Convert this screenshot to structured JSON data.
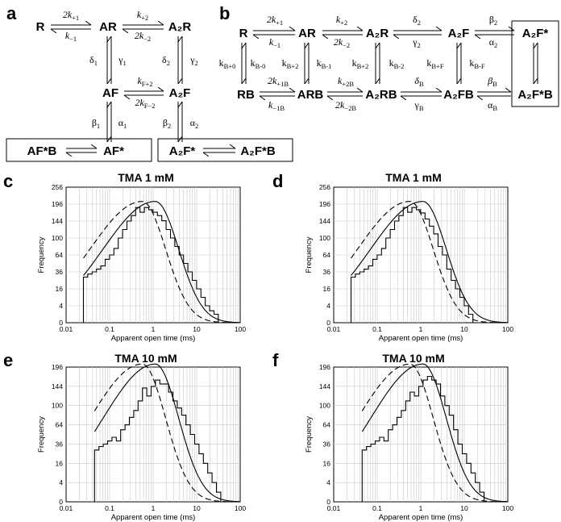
{
  "figure_labels": {
    "a": "a",
    "b": "b",
    "c": "c",
    "d": "d",
    "e": "e",
    "f": "f"
  },
  "scheme_a": {
    "states": [
      {
        "id": "R",
        "label": "R"
      },
      {
        "id": "AR",
        "label": "AR"
      },
      {
        "id": "A2R",
        "label": "A₂R"
      },
      {
        "id": "AF",
        "label": "AF"
      },
      {
        "id": "A2F",
        "label": "A₂F"
      },
      {
        "id": "AFsB",
        "label": "AF*B"
      },
      {
        "id": "AFs",
        "label": "AF*"
      },
      {
        "id": "A2Fs",
        "label": "A₂F*"
      },
      {
        "id": "A2FsB",
        "label": "A₂F*B"
      }
    ],
    "rates": [
      {
        "id": "k_p1_a",
        "main": "2k",
        "sub": "+1",
        "italic": true
      },
      {
        "id": "k_m1_a",
        "main": "k",
        "sub": "−1",
        "italic": true
      },
      {
        "id": "k_p2_a",
        "main": "k",
        "sub": "+2",
        "italic": true
      },
      {
        "id": "k_m2_a",
        "main": "2k",
        "sub": "−2",
        "italic": true
      },
      {
        "id": "d1_a",
        "main": "δ",
        "sub": "1",
        "italic": false
      },
      {
        "id": "g1_a",
        "main": "γ",
        "sub": "1",
        "italic": false
      },
      {
        "id": "d2_a",
        "main": "δ",
        "sub": "2",
        "italic": false
      },
      {
        "id": "g2_a",
        "main": "γ",
        "sub": "2",
        "italic": false
      },
      {
        "id": "kF2p_a",
        "main": "k",
        "sub": "F+2",
        "italic": true
      },
      {
        "id": "kF2m_a",
        "main": "2k",
        "sub": "F−2",
        "italic": true
      },
      {
        "id": "b1_a",
        "main": "β",
        "sub": "1",
        "italic": false
      },
      {
        "id": "a1_a",
        "main": "α",
        "sub": "1",
        "italic": false
      },
      {
        "id": "b2_a",
        "main": "β",
        "sub": "2",
        "italic": false
      },
      {
        "id": "a2_a",
        "main": "α",
        "sub": "2",
        "italic": false
      }
    ]
  },
  "scheme_b": {
    "states": [
      {
        "id": "R",
        "label": "R"
      },
      {
        "id": "AR",
        "label": "AR"
      },
      {
        "id": "A2R",
        "label": "A₂R"
      },
      {
        "id": "A2F",
        "label": "A₂F"
      },
      {
        "id": "A2Fs",
        "label": "A₂F*"
      },
      {
        "id": "RB",
        "label": "RB"
      },
      {
        "id": "ARB",
        "label": "ARB"
      },
      {
        "id": "A2RB",
        "label": "A₂RB"
      },
      {
        "id": "A2FB",
        "label": "A₂FB"
      },
      {
        "id": "A2FsB",
        "label": "A₂F*B"
      }
    ],
    "rates": [
      {
        "id": "k_p1_b",
        "main": "2k",
        "sub": "+1",
        "italic": true
      },
      {
        "id": "k_p2_b",
        "main": "k",
        "sub": "+2",
        "italic": true
      },
      {
        "id": "d2_b",
        "main": "δ",
        "sub": "2",
        "italic": false
      },
      {
        "id": "b2_b",
        "main": "β",
        "sub": "2",
        "italic": false
      },
      {
        "id": "k_m1_b",
        "main": "k",
        "sub": "−1",
        "italic": true
      },
      {
        "id": "k_m2_b",
        "main": "2k",
        "sub": "−2",
        "italic": true
      },
      {
        "id": "g2_b",
        "main": "γ",
        "sub": "2",
        "italic": false
      },
      {
        "id": "a2_b",
        "main": "α",
        "sub": "2",
        "italic": false
      },
      {
        "id": "kB0p",
        "main": "k",
        "sub": "B+0",
        "italic": false
      },
      {
        "id": "kB0m",
        "main": "k",
        "sub": "B-0",
        "italic": false
      },
      {
        "id": "kB1p",
        "main": "k",
        "sub": "B+2",
        "italic": false
      },
      {
        "id": "kB1m",
        "main": "k",
        "sub": "B-1",
        "italic": false
      },
      {
        "id": "kB2p",
        "main": "k",
        "sub": "B+2",
        "italic": false
      },
      {
        "id": "kB2m",
        "main": "k",
        "sub": "B-2",
        "italic": false
      },
      {
        "id": "kBFp",
        "main": "k",
        "sub": "B+F",
        "italic": false
      },
      {
        "id": "kBFm",
        "main": "k",
        "sub": "B-F",
        "italic": false
      },
      {
        "id": "k_p1B",
        "main": "2k",
        "sub": "+1B",
        "italic": true
      },
      {
        "id": "k_p2B",
        "main": "k",
        "sub": "+2B",
        "italic": true
      },
      {
        "id": "dB",
        "main": "δ",
        "sub": "B",
        "italic": true
      },
      {
        "id": "bB",
        "main": "β",
        "sub": "B",
        "italic": true
      },
      {
        "id": "k_m1B",
        "main": "k",
        "sub": "−1B",
        "italic": true
      },
      {
        "id": "k_m2B",
        "main": "2k",
        "sub": "−2B",
        "italic": true
      },
      {
        "id": "gB",
        "main": "γ",
        "sub": "B",
        "italic": false
      },
      {
        "id": "aB",
        "main": "α",
        "sub": "B",
        "italic": false
      }
    ]
  },
  "histograms": {
    "x_axis_label": "Apparent  open  time  (ms)",
    "y_axis_label": "Frequency",
    "x_tick_labels": [
      "0.01",
      "0.1",
      "1",
      "10",
      "100"
    ],
    "panels": [
      {
        "id": "c",
        "title": "TMA 1 mM",
        "y_ticks": [
          0,
          4,
          16,
          36,
          64,
          100,
          144,
          196,
          256
        ],
        "bin_min": 0.025,
        "counts": [
          29,
          33,
          36,
          40,
          45,
          56,
          64,
          77,
          100,
          121,
          144,
          160,
          185,
          170,
          185,
          178,
          170,
          160,
          145,
          121,
          100,
          81,
          64,
          49,
          36,
          25,
          16,
          9,
          4,
          2,
          1,
          0
        ]
      },
      {
        "id": "d",
        "title": "TMA 1 mM",
        "y_ticks": [
          0,
          4,
          16,
          36,
          64,
          100,
          144,
          196,
          256
        ],
        "bin_min": 0.025,
        "counts": [
          29,
          33,
          36,
          40,
          45,
          56,
          64,
          77,
          100,
          121,
          144,
          160,
          185,
          170,
          185,
          178,
          168,
          150,
          130,
          110,
          81,
          64,
          40,
          25,
          16,
          9,
          4,
          1,
          0
        ]
      },
      {
        "id": "e",
        "title": "TMA 10 mM",
        "y_ticks": [
          0,
          4,
          16,
          36,
          64,
          100,
          144,
          196
        ],
        "bin_min": 0.045,
        "counts": [
          29,
          33,
          36,
          40,
          45,
          40,
          56,
          64,
          77,
          90,
          110,
          140,
          121,
          144,
          160,
          150,
          150,
          130,
          110,
          95,
          81,
          64,
          49,
          36,
          25,
          16,
          9,
          4,
          1,
          0
        ]
      },
      {
        "id": "f",
        "title": "TMA 10 mM",
        "y_ticks": [
          0,
          4,
          16,
          36,
          64,
          100,
          144,
          196
        ],
        "bin_min": 0.045,
        "counts": [
          29,
          33,
          36,
          40,
          45,
          40,
          56,
          64,
          77,
          90,
          110,
          130,
          121,
          144,
          160,
          170,
          160,
          150,
          121,
          100,
          81,
          56,
          36,
          25,
          16,
          9,
          4,
          1,
          0
        ]
      }
    ]
  }
}
